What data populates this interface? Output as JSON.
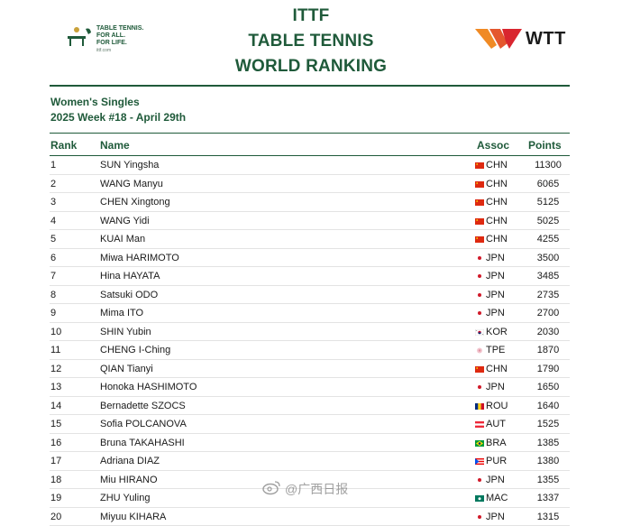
{
  "header": {
    "title_line1": "ITTF",
    "title_line2": "TABLE TENNIS",
    "title_line3": "WORLD RANKING",
    "logo_left_line1": "TABLE TENNIS.",
    "logo_left_line2": "FOR ALL.",
    "logo_left_line3": "FOR LIFE.",
    "logo_left_url": "ittf.com",
    "logo_right_text": "WTT"
  },
  "subtitle": {
    "category": "Women's Singles",
    "week": "2025 Week #18 - April 29th"
  },
  "table": {
    "columns": {
      "rank": "Rank",
      "name": "Name",
      "assoc": "Assoc",
      "points": "Points"
    },
    "rows": [
      {
        "rank": "1",
        "name": "SUN Yingsha",
        "assoc": "CHN",
        "points": "11300",
        "flag": "chn"
      },
      {
        "rank": "2",
        "name": "WANG Manyu",
        "assoc": "CHN",
        "points": "6065",
        "flag": "chn"
      },
      {
        "rank": "3",
        "name": "CHEN Xingtong",
        "assoc": "CHN",
        "points": "5125",
        "flag": "chn"
      },
      {
        "rank": "4",
        "name": "WANG Yidi",
        "assoc": "CHN",
        "points": "5025",
        "flag": "chn"
      },
      {
        "rank": "5",
        "name": "KUAI Man",
        "assoc": "CHN",
        "points": "4255",
        "flag": "chn"
      },
      {
        "rank": "6",
        "name": "Miwa HARIMOTO",
        "assoc": "JPN",
        "points": "3500",
        "flag": "jpn"
      },
      {
        "rank": "7",
        "name": "Hina HAYATA",
        "assoc": "JPN",
        "points": "3485",
        "flag": "jpn"
      },
      {
        "rank": "8",
        "name": "Satsuki ODO",
        "assoc": "JPN",
        "points": "2735",
        "flag": "jpn"
      },
      {
        "rank": "9",
        "name": "Mima ITO",
        "assoc": "JPN",
        "points": "2700",
        "flag": "jpn"
      },
      {
        "rank": "10",
        "name": "SHIN Yubin",
        "assoc": "KOR",
        "points": "2030",
        "flag": "kor"
      },
      {
        "rank": "11",
        "name": "CHENG I-Ching",
        "assoc": "TPE",
        "points": "1870",
        "flag": "tpe"
      },
      {
        "rank": "12",
        "name": "QIAN Tianyi",
        "assoc": "CHN",
        "points": "1790",
        "flag": "chn"
      },
      {
        "rank": "13",
        "name": "Honoka HASHIMOTO",
        "assoc": "JPN",
        "points": "1650",
        "flag": "jpn"
      },
      {
        "rank": "14",
        "name": "Bernadette SZOCS",
        "assoc": "ROU",
        "points": "1640",
        "flag": "rou"
      },
      {
        "rank": "15",
        "name": "Sofia POLCANOVA",
        "assoc": "AUT",
        "points": "1525",
        "flag": "aut"
      },
      {
        "rank": "16",
        "name": "Bruna TAKAHASHI",
        "assoc": "BRA",
        "points": "1385",
        "flag": "bra"
      },
      {
        "rank": "17",
        "name": "Adriana DIAZ",
        "assoc": "PUR",
        "points": "1380",
        "flag": "pur"
      },
      {
        "rank": "18",
        "name": "Miu HIRANO",
        "assoc": "JPN",
        "points": "1355",
        "flag": "jpn"
      },
      {
        "rank": "19",
        "name": "ZHU Yuling",
        "assoc": "MAC",
        "points": "1337",
        "flag": "mac"
      },
      {
        "rank": "20",
        "name": "Miyuu KIHARA",
        "assoc": "JPN",
        "points": "1315",
        "flag": "jpn"
      }
    ]
  },
  "watermark": {
    "text": "@广西日报"
  },
  "colors": {
    "brand_green": "#1f5a3a",
    "wtt_red": "#d9262f",
    "wtt_orange": "#f08a24"
  }
}
